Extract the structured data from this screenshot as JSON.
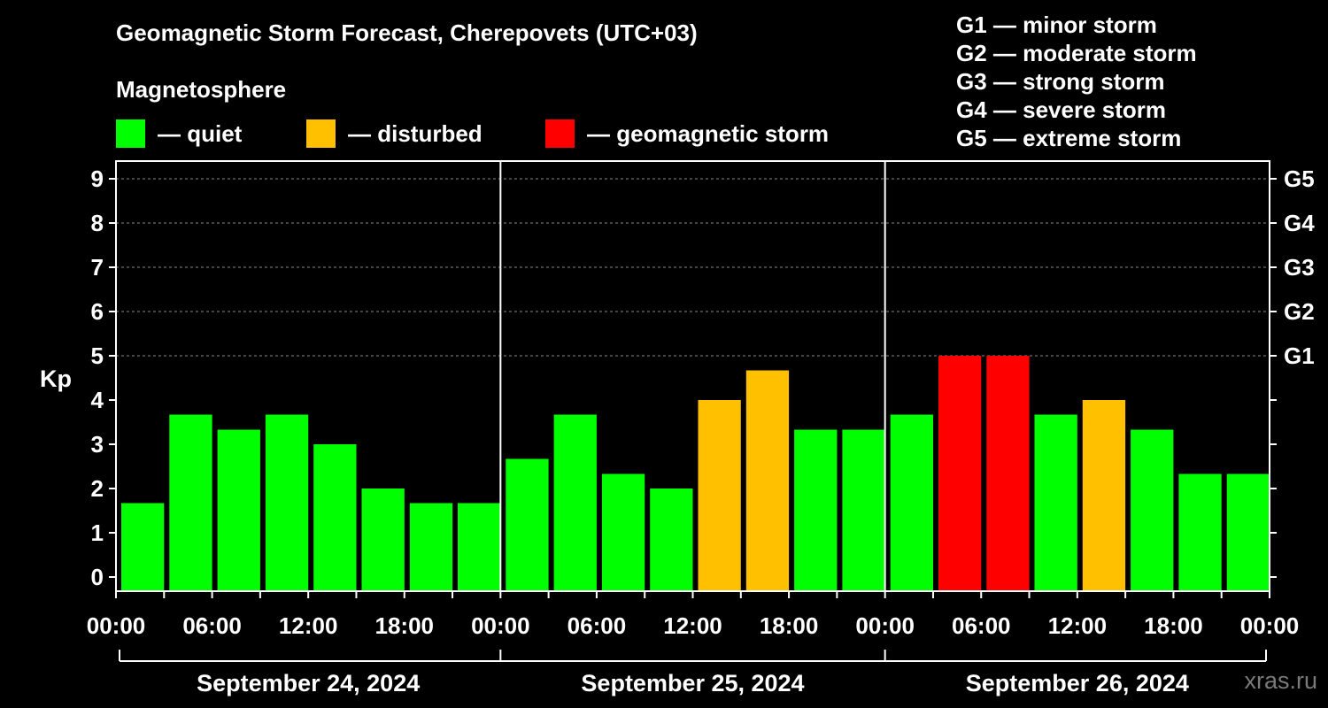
{
  "title": "Geomagnetic Storm Forecast, Cherepovets (UTC+03)",
  "magnetosphere_label": "Magnetosphere",
  "legend": [
    {
      "label": "— quiet",
      "color": "#00ff00"
    },
    {
      "label": "— disturbed",
      "color": "#ffc000"
    },
    {
      "label": "— geomagnetic storm",
      "color": "#ff0000"
    }
  ],
  "storm_levels": [
    "G1 — minor storm",
    "G2 — moderate storm",
    "G3 — strong storm",
    "G4 — severe storm",
    "G5 — extreme storm"
  ],
  "watermark": "xras.ru",
  "chart_data": {
    "type": "bar",
    "ylabel": "Kp",
    "ylim": [
      0,
      9
    ],
    "yticks": [
      "0",
      "1",
      "2",
      "3",
      "4",
      "5",
      "6",
      "7",
      "8",
      "9"
    ],
    "right_ticks": [
      {
        "value": 5,
        "label": "G1"
      },
      {
        "value": 6,
        "label": "G2"
      },
      {
        "value": 7,
        "label": "G3"
      },
      {
        "value": 8,
        "label": "G4"
      },
      {
        "value": 9,
        "label": "G5"
      }
    ],
    "xticks": [
      "00:00",
      "06:00",
      "12:00",
      "18:00",
      "00:00",
      "06:00",
      "12:00",
      "18:00",
      "00:00",
      "06:00",
      "12:00",
      "18:00",
      "00:00"
    ],
    "days": [
      "September 24, 2024",
      "September 25, 2024",
      "September 26, 2024"
    ],
    "values": [
      1.67,
      3.67,
      3.33,
      3.67,
      3.0,
      2.0,
      1.67,
      1.67,
      2.67,
      3.67,
      2.33,
      2.0,
      4.0,
      4.67,
      3.33,
      3.33,
      3.67,
      5.0,
      5.0,
      3.67,
      4.0,
      3.33,
      2.33,
      2.33
    ],
    "status": [
      "quiet",
      "quiet",
      "quiet",
      "quiet",
      "quiet",
      "quiet",
      "quiet",
      "quiet",
      "quiet",
      "quiet",
      "quiet",
      "quiet",
      "disturbed",
      "disturbed",
      "quiet",
      "quiet",
      "quiet",
      "storm",
      "storm",
      "quiet",
      "disturbed",
      "quiet",
      "quiet",
      "quiet"
    ],
    "colors": {
      "quiet": "#00ff00",
      "disturbed": "#ffc000",
      "storm": "#ff0000"
    }
  }
}
